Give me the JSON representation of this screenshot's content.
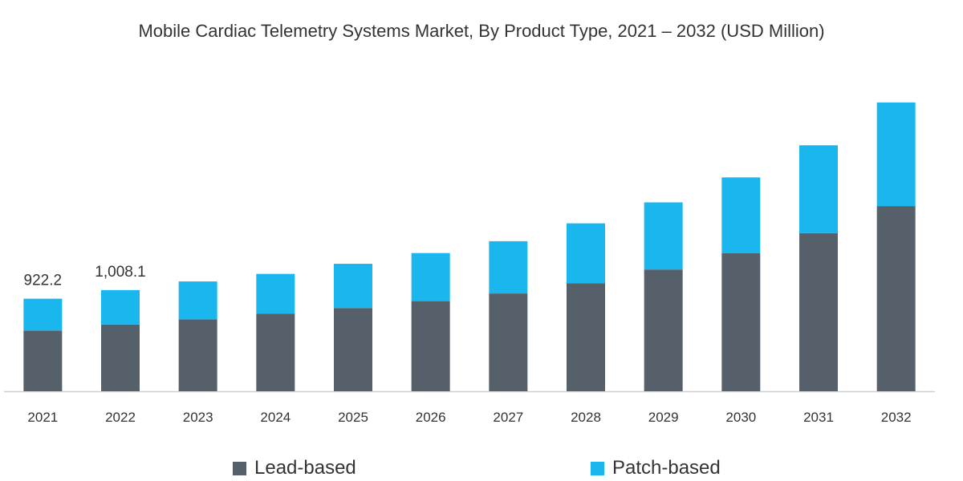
{
  "title": "Mobile Cardiac Telemetry Systems Market, By Product Type, 2021 – 2032 (USD Million)",
  "colors": {
    "lead": "#56606b",
    "patch": "#1ab7ee",
    "axis": "#d0d0d0",
    "text": "#333333"
  },
  "chart_data": {
    "type": "bar",
    "stacked": true,
    "categories": [
      "2021",
      "2022",
      "2023",
      "2024",
      "2025",
      "2026",
      "2027",
      "2028",
      "2029",
      "2030",
      "2031",
      "2032"
    ],
    "series": [
      {
        "name": "Lead-based",
        "color": "#56606b",
        "values": [
          605,
          665,
          716,
          771,
          829,
          898,
          974,
          1077,
          1213,
          1377,
          1576,
          1845
        ]
      },
      {
        "name": "Patch-based",
        "color": "#1ab7ee",
        "values": [
          317,
          343,
          378,
          398,
          441,
          479,
          521,
          596,
          669,
          754,
          875,
          1033
        ]
      }
    ],
    "data_labels": [
      {
        "category": "2021",
        "text": "922.2"
      },
      {
        "category": "2022",
        "text": "1,008.1"
      }
    ],
    "ylim": [
      0,
      3100
    ],
    "grid": false,
    "y_axis_visible": false,
    "legend_position": "bottom"
  }
}
